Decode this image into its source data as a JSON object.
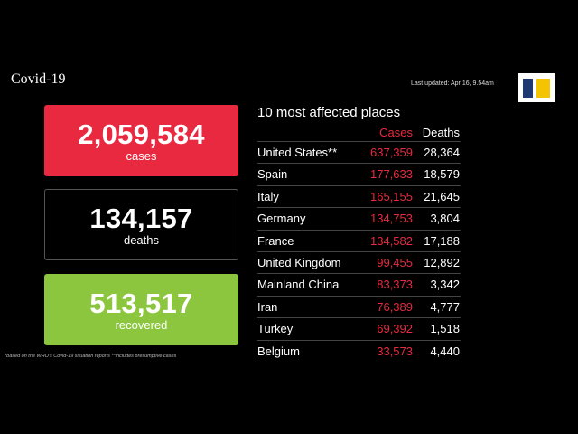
{
  "header": {
    "title": "Covid-19",
    "updated": "Last updated: Apr 16, 9.54am"
  },
  "summary": {
    "cases": {
      "value": "2,059,584",
      "label": "cases"
    },
    "deaths": {
      "value": "134,157",
      "label": "deaths"
    },
    "recovered": {
      "value": "513,517",
      "label": "recovered"
    }
  },
  "footnote": "*based on the WHO's Covid-19 situation reports   **includes presumptive cases",
  "places": {
    "title": "10 most affected places",
    "col_cases": "Cases",
    "col_deaths": "Deaths",
    "rows": [
      {
        "place": "United States**",
        "cases": "637,359",
        "deaths": "28,364"
      },
      {
        "place": "Spain",
        "cases": "177,633",
        "deaths": "18,579"
      },
      {
        "place": "Italy",
        "cases": "165,155",
        "deaths": "21,645"
      },
      {
        "place": "Germany",
        "cases": "134,753",
        "deaths": "3,804"
      },
      {
        "place": "France",
        "cases": "134,582",
        "deaths": "17,188"
      },
      {
        "place": "United Kingdom",
        "cases": "99,455",
        "deaths": "12,892"
      },
      {
        "place": "Mainland China",
        "cases": "83,373",
        "deaths": "3,342"
      },
      {
        "place": "Iran",
        "cases": "76,389",
        "deaths": "4,777"
      },
      {
        "place": "Turkey",
        "cases": "69,392",
        "deaths": "1,518"
      },
      {
        "place": "Belgium",
        "cases": "33,573",
        "deaths": "4,440"
      }
    ]
  },
  "colors": {
    "background": "#000000",
    "cases": "#e8293f",
    "recovered": "#8cc63f",
    "logo_blue": "#1f3a73",
    "logo_yellow": "#f5c400"
  }
}
